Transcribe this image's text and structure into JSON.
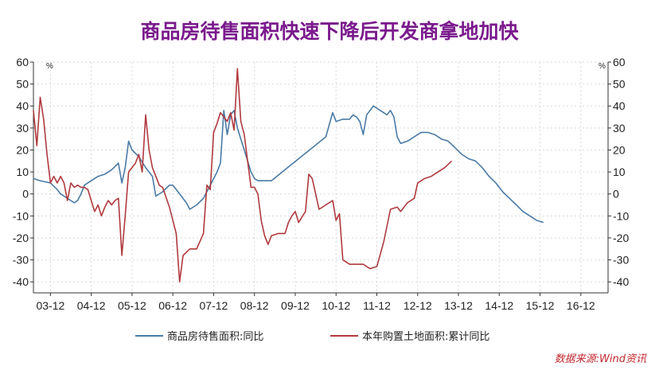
{
  "chart_data": {
    "type": "line",
    "title": "商品房待售面积快速下降后开发商拿地加快",
    "ylim": [
      -45,
      60
    ],
    "yticks": [
      -40,
      -30,
      -20,
      -10,
      0,
      10,
      20,
      30,
      40,
      50,
      60
    ],
    "y_unit_left": "%",
    "y_unit_right": "%",
    "xlim": [
      0,
      169
    ],
    "x_ticks": [
      {
        "label": "03-12",
        "x": 5
      },
      {
        "label": "04-12",
        "x": 17
      },
      {
        "label": "05-12",
        "x": 29
      },
      {
        "label": "06-12",
        "x": 41
      },
      {
        "label": "07-12",
        "x": 53
      },
      {
        "label": "08-12",
        "x": 65
      },
      {
        "label": "09-12",
        "x": 77
      },
      {
        "label": "10-12",
        "x": 89
      },
      {
        "label": "11-12",
        "x": 101
      },
      {
        "label": "12-12",
        "x": 113
      },
      {
        "label": "13-12",
        "x": 125
      },
      {
        "label": "14-12",
        "x": 137
      },
      {
        "label": "15-12",
        "x": 149
      },
      {
        "label": "16-12",
        "x": 161
      }
    ],
    "grid": true,
    "legend_position": "bottom",
    "series": [
      {
        "name": "商品房待售面积:同比",
        "color": "#4a7aa6",
        "points": [
          [
            0,
            7
          ],
          [
            2,
            6
          ],
          [
            5,
            5
          ],
          [
            7,
            2
          ],
          [
            8,
            0
          ],
          [
            9,
            -1
          ],
          [
            10,
            -2
          ],
          [
            11,
            -3
          ],
          [
            12,
            -4
          ],
          [
            13,
            -3
          ],
          [
            14,
            0
          ],
          [
            15,
            4
          ],
          [
            17,
            6
          ],
          [
            19,
            8
          ],
          [
            21,
            9
          ],
          [
            23,
            11
          ],
          [
            25,
            14
          ],
          [
            26,
            5
          ],
          [
            27,
            12
          ],
          [
            28,
            24
          ],
          [
            29,
            20
          ],
          [
            31,
            17
          ],
          [
            33,
            12
          ],
          [
            35,
            8
          ],
          [
            36,
            -1
          ],
          [
            38,
            1
          ],
          [
            40,
            4
          ],
          [
            41,
            4
          ],
          [
            43,
            0
          ],
          [
            45,
            -4
          ],
          [
            46,
            -7
          ],
          [
            48,
            -5
          ],
          [
            50,
            -2
          ],
          [
            52,
            4
          ],
          [
            54,
            10
          ],
          [
            55,
            14
          ],
          [
            56,
            38
          ],
          [
            57,
            27
          ],
          [
            58,
            36
          ],
          [
            59,
            38
          ],
          [
            60,
            30
          ],
          [
            62,
            20
          ],
          [
            64,
            10
          ],
          [
            65,
            7
          ],
          [
            66,
            6
          ],
          [
            68,
            6
          ],
          [
            70,
            6
          ],
          [
            74,
            11
          ],
          [
            78,
            16
          ],
          [
            82,
            21
          ],
          [
            86,
            26
          ],
          [
            88,
            37
          ],
          [
            89,
            33
          ],
          [
            91,
            34
          ],
          [
            93,
            34
          ],
          [
            94,
            36
          ],
          [
            95,
            35
          ],
          [
            96,
            33
          ],
          [
            97,
            27
          ],
          [
            98,
            36
          ],
          [
            99,
            38
          ],
          [
            100,
            40
          ],
          [
            102,
            38
          ],
          [
            104,
            36
          ],
          [
            105,
            38
          ],
          [
            106,
            35
          ],
          [
            107,
            26
          ],
          [
            108,
            23
          ],
          [
            110,
            24
          ],
          [
            112,
            26
          ],
          [
            114,
            28
          ],
          [
            116,
            28
          ],
          [
            118,
            27
          ],
          [
            120,
            25
          ],
          [
            122,
            24
          ],
          [
            124,
            21
          ],
          [
            126,
            18
          ],
          [
            128,
            16
          ],
          [
            130,
            15
          ],
          [
            132,
            12
          ],
          [
            134,
            8
          ],
          [
            136,
            5
          ],
          [
            138,
            1
          ],
          [
            140,
            -2
          ],
          [
            142,
            -5
          ],
          [
            144,
            -8
          ],
          [
            146,
            -10
          ],
          [
            148,
            -12
          ],
          [
            150,
            -13
          ]
        ]
      },
      {
        "name": "本年购置土地面积:累计同比",
        "color": "#b03a3e",
        "points": [
          [
            0,
            38
          ],
          [
            1,
            22
          ],
          [
            2,
            44
          ],
          [
            3,
            34
          ],
          [
            4,
            18
          ],
          [
            5,
            5
          ],
          [
            6,
            8
          ],
          [
            7,
            5
          ],
          [
            8,
            8
          ],
          [
            9,
            5
          ],
          [
            10,
            -3
          ],
          [
            11,
            5
          ],
          [
            12,
            3
          ],
          [
            13,
            4
          ],
          [
            14,
            3
          ],
          [
            15,
            3
          ],
          [
            16,
            2
          ],
          [
            17,
            -3
          ],
          [
            18,
            -8
          ],
          [
            19,
            -5
          ],
          [
            20,
            -10
          ],
          [
            21,
            -6
          ],
          [
            22,
            -3
          ],
          [
            23,
            -5
          ],
          [
            24,
            -3
          ],
          [
            25,
            -2
          ],
          [
            26,
            -28
          ],
          [
            27,
            -10
          ],
          [
            28,
            10
          ],
          [
            29,
            12
          ],
          [
            30,
            14
          ],
          [
            31,
            18
          ],
          [
            32,
            10
          ],
          [
            33,
            36
          ],
          [
            34,
            20
          ],
          [
            35,
            12
          ],
          [
            36,
            8
          ],
          [
            37,
            4
          ],
          [
            38,
            3
          ],
          [
            40,
            -6
          ],
          [
            42,
            -18
          ],
          [
            43,
            -40
          ],
          [
            44,
            -28
          ],
          [
            46,
            -25
          ],
          [
            48,
            -25
          ],
          [
            50,
            -18
          ],
          [
            51,
            4
          ],
          [
            52,
            2
          ],
          [
            53,
            28
          ],
          [
            54,
            32
          ],
          [
            55,
            37
          ],
          [
            56,
            35
          ],
          [
            57,
            33
          ],
          [
            58,
            37
          ],
          [
            59,
            29
          ],
          [
            60,
            57
          ],
          [
            61,
            33
          ],
          [
            62,
            27
          ],
          [
            63,
            15
          ],
          [
            64,
            3
          ],
          [
            65,
            3
          ],
          [
            66,
            0
          ],
          [
            67,
            -12
          ],
          [
            68,
            -19
          ],
          [
            69,
            -23
          ],
          [
            70,
            -19
          ],
          [
            72,
            -18
          ],
          [
            74,
            -18
          ],
          [
            75,
            -13
          ],
          [
            76,
            -10
          ],
          [
            77,
            -8
          ],
          [
            78,
            -13
          ],
          [
            80,
            -8
          ],
          [
            81,
            9
          ],
          [
            82,
            7
          ],
          [
            84,
            -7
          ],
          [
            86,
            -5
          ],
          [
            88,
            -3
          ],
          [
            89,
            -12
          ],
          [
            90,
            -9
          ],
          [
            91,
            -30
          ],
          [
            93,
            -32
          ],
          [
            95,
            -32
          ],
          [
            97,
            -32
          ],
          [
            99,
            -34
          ],
          [
            101,
            -33
          ],
          [
            103,
            -22
          ],
          [
            105,
            -7
          ],
          [
            107,
            -6
          ],
          [
            108,
            -8
          ],
          [
            110,
            -4
          ],
          [
            112,
            -2
          ],
          [
            113,
            5
          ],
          [
            115,
            7
          ],
          [
            117,
            8
          ],
          [
            119,
            10
          ],
          [
            121,
            12
          ],
          [
            123,
            15
          ]
        ]
      }
    ],
    "source": "数据来源:Wind资讯"
  }
}
